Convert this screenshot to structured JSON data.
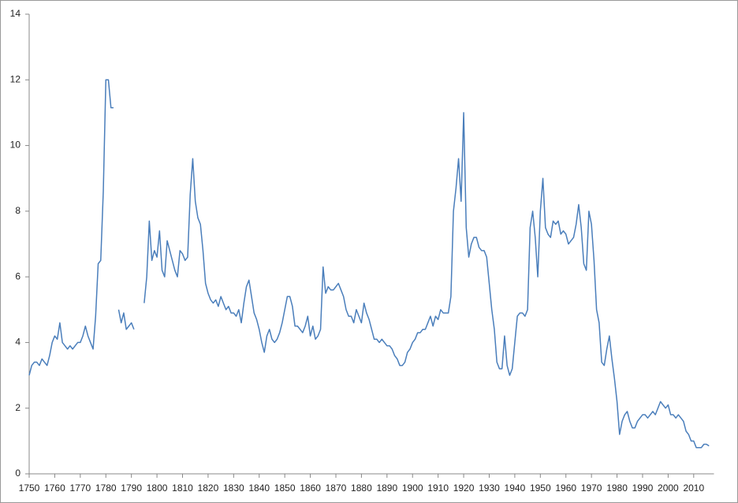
{
  "chart_data": {
    "type": "line",
    "x": [
      1750,
      1751,
      1752,
      1753,
      1754,
      1755,
      1756,
      1757,
      1758,
      1759,
      1760,
      1761,
      1762,
      1763,
      1764,
      1765,
      1766,
      1767,
      1768,
      1769,
      1770,
      1771,
      1772,
      1773,
      1774,
      1775,
      1776,
      1777,
      1778,
      1779,
      1780,
      1781,
      1782,
      1783,
      1784,
      1785,
      1786,
      1787,
      1788,
      1789,
      1790,
      1791,
      1792,
      1793,
      1794,
      1795,
      1796,
      1797,
      1798,
      1799,
      1800,
      1801,
      1802,
      1803,
      1804,
      1805,
      1806,
      1807,
      1808,
      1809,
      1810,
      1811,
      1812,
      1813,
      1814,
      1815,
      1816,
      1817,
      1818,
      1819,
      1820,
      1821,
      1822,
      1823,
      1824,
      1825,
      1826,
      1827,
      1828,
      1829,
      1830,
      1831,
      1832,
      1833,
      1834,
      1835,
      1836,
      1837,
      1838,
      1839,
      1840,
      1841,
      1842,
      1843,
      1844,
      1845,
      1846,
      1847,
      1848,
      1849,
      1850,
      1851,
      1852,
      1853,
      1854,
      1855,
      1856,
      1857,
      1858,
      1859,
      1860,
      1861,
      1862,
      1863,
      1864,
      1865,
      1866,
      1867,
      1868,
      1869,
      1870,
      1871,
      1872,
      1873,
      1874,
      1875,
      1876,
      1877,
      1878,
      1879,
      1880,
      1881,
      1882,
      1883,
      1884,
      1885,
      1886,
      1887,
      1888,
      1889,
      1890,
      1891,
      1892,
      1893,
      1894,
      1895,
      1896,
      1897,
      1898,
      1899,
      1900,
      1901,
      1902,
      1903,
      1904,
      1905,
      1906,
      1907,
      1908,
      1909,
      1910,
      1911,
      1912,
      1913,
      1914,
      1915,
      1916,
      1917,
      1918,
      1919,
      1920,
      1921,
      1922,
      1923,
      1924,
      1925,
      1926,
      1927,
      1928,
      1929,
      1930,
      1931,
      1932,
      1933,
      1934,
      1935,
      1936,
      1937,
      1938,
      1939,
      1940,
      1941,
      1942,
      1943,
      1944,
      1945,
      1946,
      1947,
      1948,
      1949,
      1950,
      1951,
      1952,
      1953,
      1954,
      1955,
      1956,
      1957,
      1958,
      1959,
      1960,
      1961,
      1962,
      1963,
      1964,
      1965,
      1966,
      1967,
      1968,
      1969,
      1970,
      1971,
      1972,
      1973,
      1974,
      1975,
      1976,
      1977,
      1978,
      1979,
      1980,
      1981,
      1982,
      1983,
      1984,
      1985,
      1986,
      1987,
      1988,
      1989,
      1990,
      1991,
      1992,
      1993,
      1994,
      1995,
      1996,
      1997,
      1998,
      1999,
      2000,
      2001,
      2002,
      2003,
      2004,
      2005,
      2006,
      2007,
      2008,
      2009,
      2010,
      2011,
      2012,
      2013,
      2014,
      2015,
      2016
    ],
    "series": [
      {
        "color": "#4a7ebb",
        "values": [
          3.0,
          3.3,
          3.4,
          3.4,
          3.3,
          3.5,
          3.4,
          3.3,
          3.6,
          4.0,
          4.2,
          4.1,
          4.6,
          4.0,
          3.9,
          3.8,
          3.9,
          3.8,
          3.9,
          4.0,
          4.0,
          4.2,
          4.5,
          4.2,
          4.0,
          3.8,
          4.8,
          6.4,
          6.5,
          8.6,
          12.0,
          12.0,
          11.15,
          11.15,
          null,
          5.0,
          4.6,
          4.9,
          4.4,
          4.5,
          4.6,
          4.4,
          null,
          null,
          null,
          5.2,
          6.0,
          7.7,
          6.5,
          6.8,
          6.6,
          7.4,
          6.2,
          6.0,
          7.1,
          6.8,
          6.5,
          6.2,
          6.0,
          6.8,
          6.7,
          6.5,
          6.6,
          8.5,
          9.6,
          8.3,
          7.8,
          7.6,
          6.8,
          5.8,
          5.5,
          5.3,
          5.2,
          5.3,
          5.1,
          5.4,
          5.2,
          5.0,
          5.1,
          4.9,
          4.9,
          4.8,
          5.0,
          4.6,
          5.2,
          5.7,
          5.9,
          5.4,
          4.9,
          4.7,
          4.4,
          4.0,
          3.7,
          4.2,
          4.4,
          4.1,
          4.0,
          4.1,
          4.3,
          4.6,
          5.0,
          5.4,
          5.4,
          5.1,
          4.5,
          4.5,
          4.4,
          4.3,
          4.5,
          4.8,
          4.2,
          4.5,
          4.1,
          4.2,
          4.4,
          6.3,
          5.5,
          5.7,
          5.6,
          5.6,
          5.7,
          5.8,
          5.6,
          5.4,
          5.0,
          4.8,
          4.8,
          4.6,
          5.0,
          4.8,
          4.6,
          5.2,
          4.9,
          4.7,
          4.4,
          4.1,
          4.1,
          4.0,
          4.1,
          4.0,
          3.9,
          3.9,
          3.8,
          3.6,
          3.5,
          3.3,
          3.3,
          3.4,
          3.7,
          3.8,
          4.0,
          4.1,
          4.3,
          4.3,
          4.4,
          4.4,
          4.6,
          4.8,
          4.5,
          4.8,
          4.7,
          5.0,
          4.9,
          4.9,
          4.9,
          5.4,
          8.0,
          8.7,
          9.6,
          8.3,
          11.0,
          7.5,
          6.6,
          7.0,
          7.2,
          7.2,
          6.9,
          6.8,
          6.8,
          6.6,
          5.8,
          5.0,
          4.4,
          3.4,
          3.2,
          3.2,
          4.2,
          3.3,
          3.0,
          3.2,
          4.0,
          4.8,
          4.9,
          4.9,
          4.8,
          5.0,
          7.5,
          8.0,
          7.2,
          6.0,
          8.0,
          9.0,
          7.5,
          7.3,
          7.2,
          7.7,
          7.6,
          7.7,
          7.3,
          7.4,
          7.3,
          7.0,
          7.1,
          7.2,
          7.6,
          8.2,
          7.5,
          6.4,
          6.2,
          8.0,
          7.6,
          6.5,
          5.0,
          4.6,
          3.4,
          3.3,
          3.8,
          4.2,
          3.5,
          2.9,
          2.2,
          1.2,
          1.6,
          1.8,
          1.9,
          1.6,
          1.4,
          1.4,
          1.6,
          1.7,
          1.8,
          1.8,
          1.7,
          1.8,
          1.9,
          1.8,
          2.0,
          2.2,
          2.1,
          2.0,
          2.1,
          1.8,
          1.8,
          1.7,
          1.8,
          1.7,
          1.6,
          1.3,
          1.2,
          1.0,
          1.0,
          0.8,
          0.8,
          0.8,
          0.9,
          0.9,
          0.85
        ]
      }
    ],
    "xlim": [
      1750,
      2017
    ],
    "xticks": [
      1750,
      1760,
      1770,
      1780,
      1790,
      1800,
      1810,
      1820,
      1830,
      1840,
      1850,
      1860,
      1870,
      1880,
      1890,
      1900,
      1910,
      1920,
      1930,
      1940,
      1950,
      1960,
      1970,
      1980,
      1990,
      2000,
      2010
    ],
    "ylim": [
      0,
      14
    ],
    "yticks": [
      0,
      2,
      4,
      6,
      8,
      10,
      12,
      14
    ]
  }
}
